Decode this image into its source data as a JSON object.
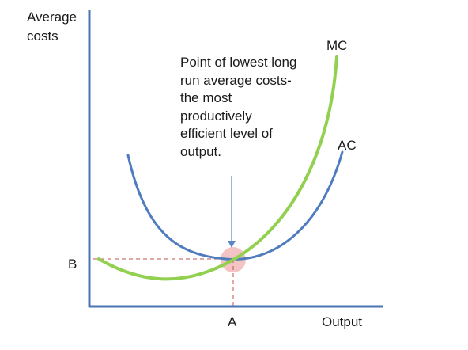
{
  "diagram": {
    "y_axis_label_lines": [
      "Average",
      "costs"
    ],
    "x_axis_label": "Output",
    "x_mark": "A",
    "y_mark": "B",
    "mc_label": "MC",
    "ac_label": "AC",
    "annotation_lines": [
      "Point of lowest long",
      "run average costs-",
      "the most",
      "productively",
      "efficient level of",
      "output."
    ],
    "colors": {
      "axis": "#4a74b3",
      "ac_curve": "#4f7bbf",
      "mc_curve": "#92d050",
      "dashed_guide": "#c0504d",
      "highlight": "#f2b8b8",
      "arrow": "#5b86c4"
    }
  }
}
